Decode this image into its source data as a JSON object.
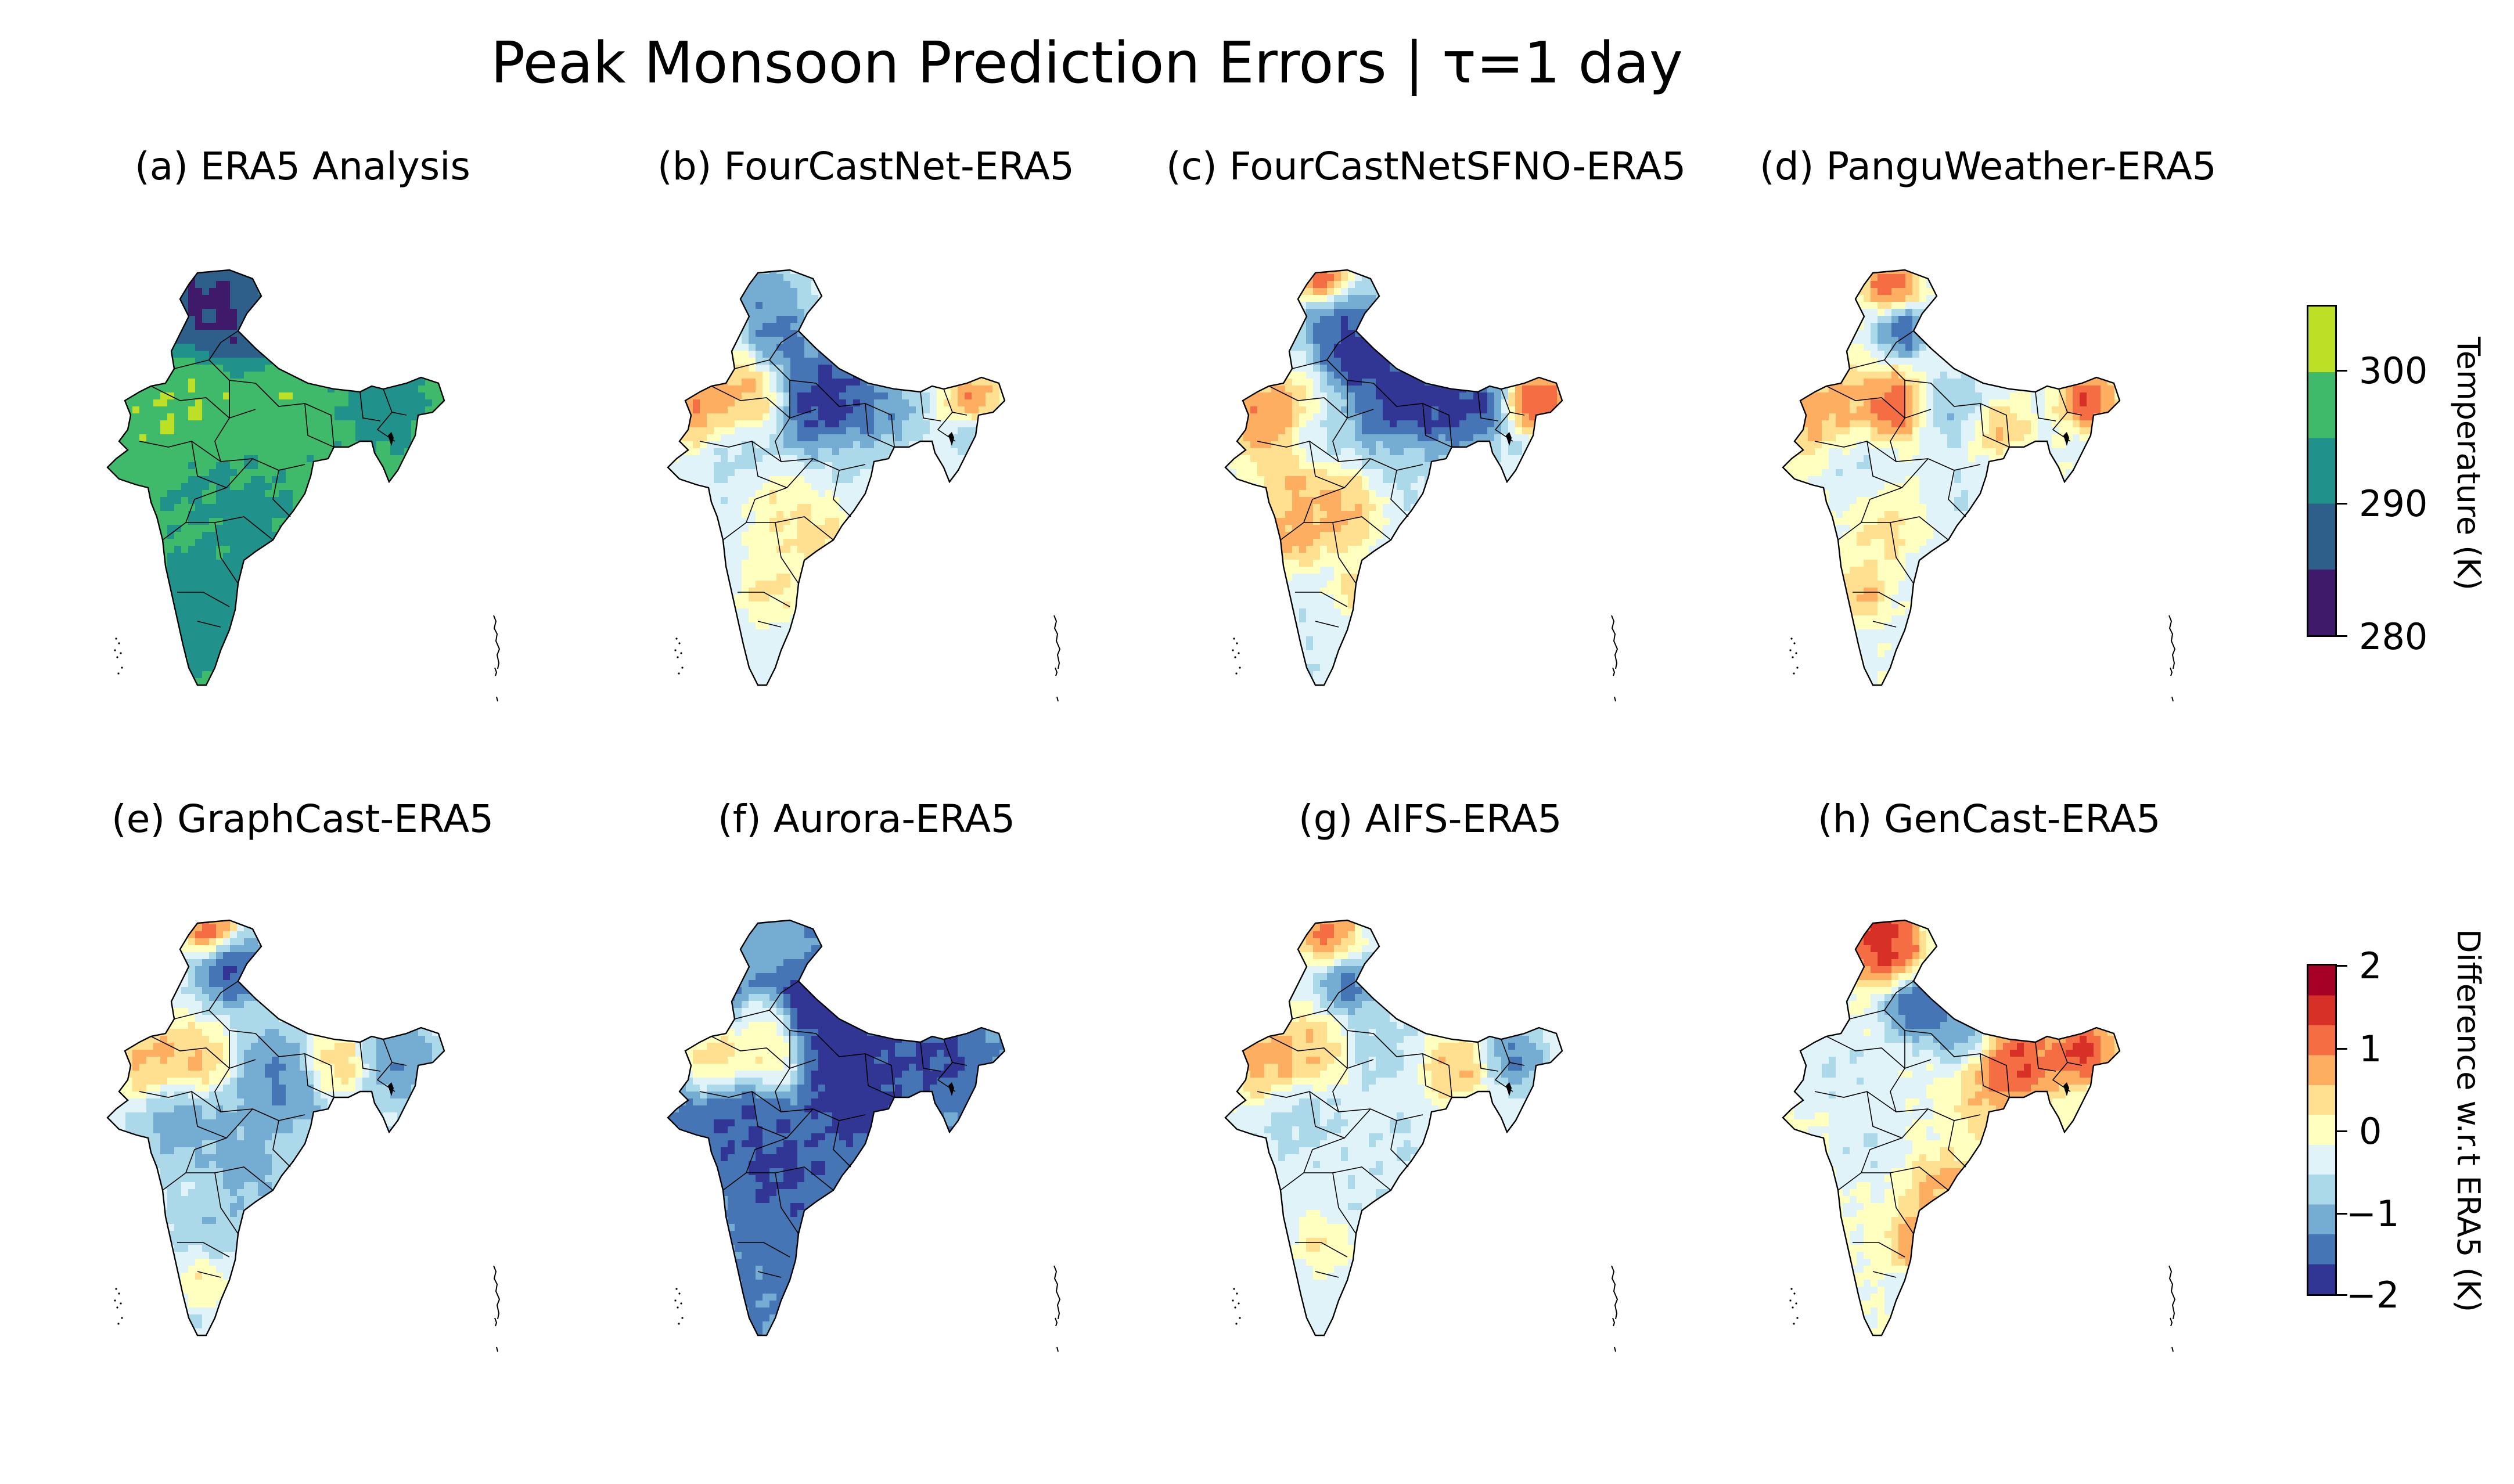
{
  "figure": {
    "title": "Peak Monsoon Prediction Errors | τ=1 day"
  },
  "panels": [
    {
      "label": "(a) ERA5 Analysis",
      "kind": "analysis"
    },
    {
      "label": "(b) FourCastNet-ERA5",
      "kind": "difference"
    },
    {
      "label": "(c) FourCastNetSFNO-ERA5",
      "kind": "difference"
    },
    {
      "label": "(d) PanguWeather-ERA5",
      "kind": "difference"
    },
    {
      "label": "(e) GraphCast-ERA5",
      "kind": "difference"
    },
    {
      "label": "(f) Aurora-ERA5",
      "kind": "difference"
    },
    {
      "label": "(g) AIFS-ERA5",
      "kind": "difference"
    },
    {
      "label": "(h) GenCast-ERA5",
      "kind": "difference"
    }
  ],
  "colorbars": {
    "temperature": {
      "label": "Temperature (K)",
      "ticks": [
        "300",
        "290",
        "280"
      ],
      "range": [
        280,
        305
      ],
      "colors": [
        "#3f1a6b",
        "#2e5f8a",
        "#21918c",
        "#3fb96a",
        "#bddf26"
      ]
    },
    "difference": {
      "label": "Difference w.r.t ERA5 (K)",
      "ticks": [
        "2",
        "1",
        "0",
        "−1",
        "−2"
      ],
      "range": [
        -2,
        2
      ],
      "colors": [
        "#313695",
        "#4575b4",
        "#74add1",
        "#abd9e9",
        "#e0f3f8",
        "#ffffbf",
        "#fee090",
        "#fdae61",
        "#f46d43",
        "#d73027",
        "#a50026"
      ]
    }
  }
}
